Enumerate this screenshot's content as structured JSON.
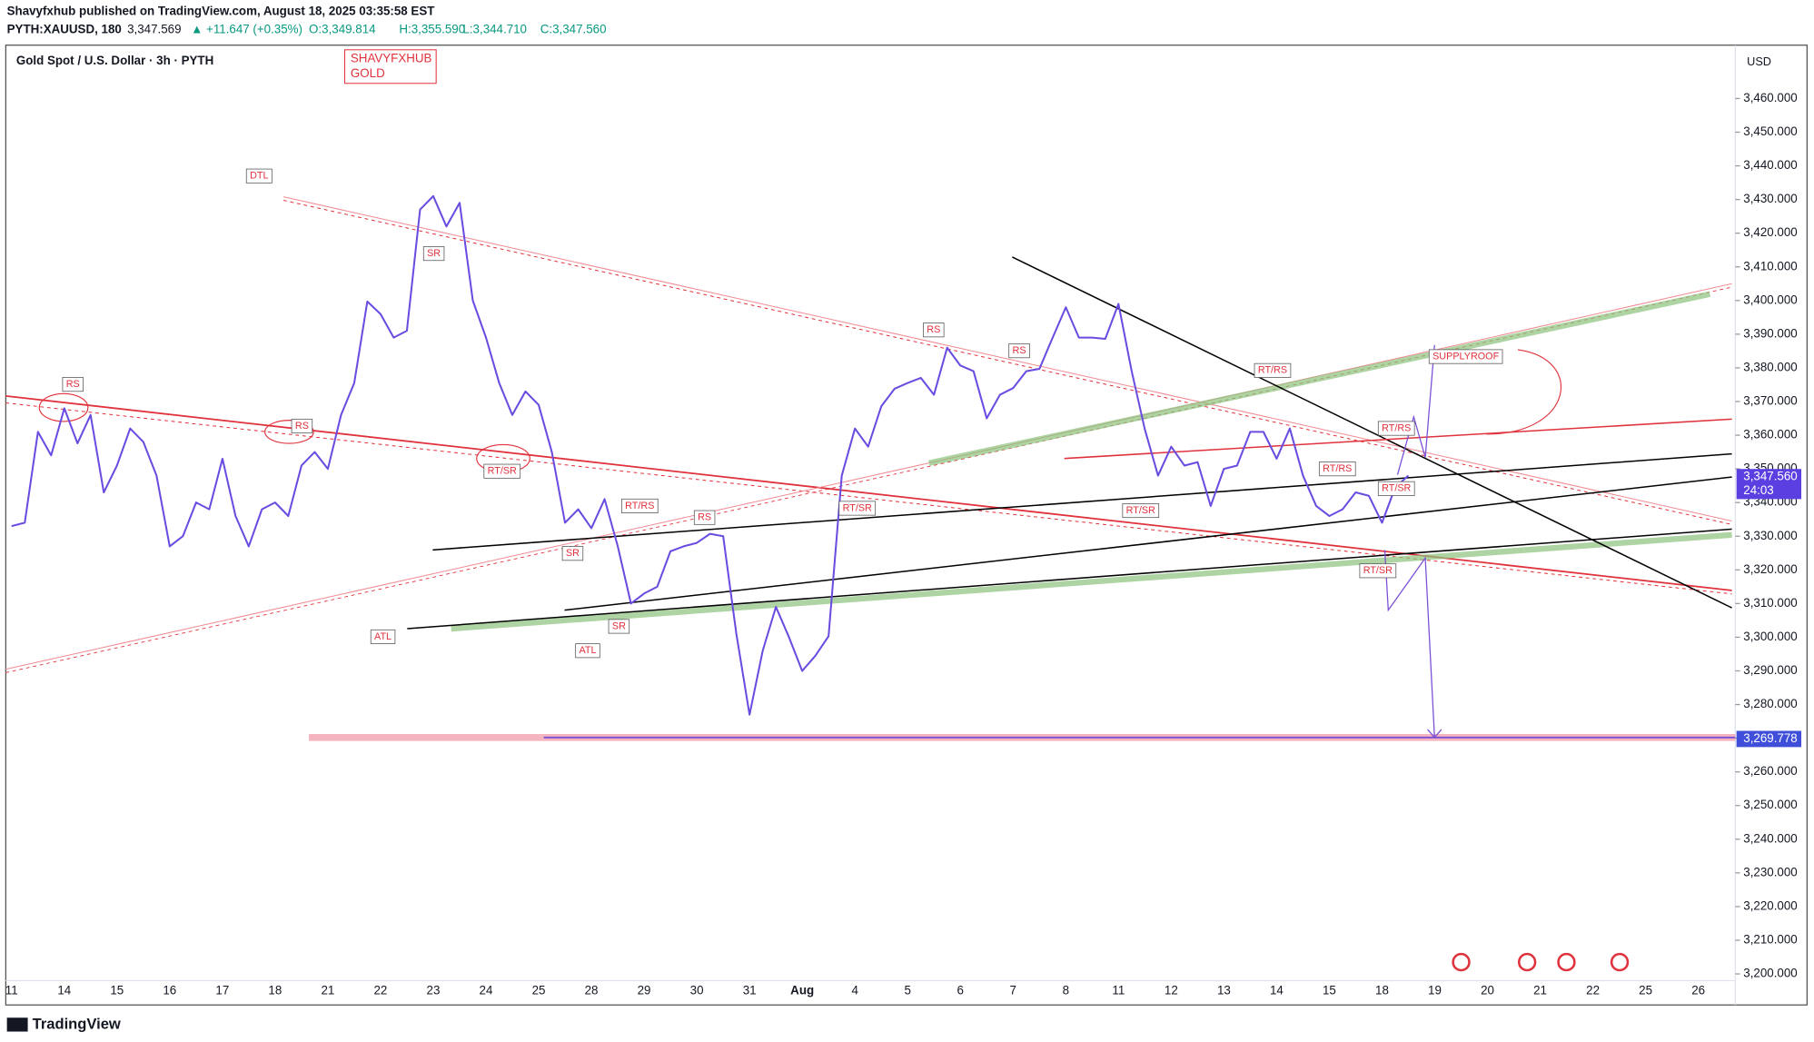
{
  "chart_data": {
    "type": "line",
    "publisher_line": "Shavyfxhub published on TradingView.com, August 18, 2025 03:35:58 EST",
    "symbol": "PYTH:XAUUSD, 180",
    "last": "3,347.569",
    "change": "▲ +11.647 (+0.35%)",
    "ohlc": [
      "O:3,349.814",
      "H:3,355.590",
      "L:3,344.710",
      "C:3,347.560"
    ],
    "title": "Gold Spot / U.S. Dollar · 3h · PYTH",
    "watermark": [
      "SHAVYFXHUB",
      "GOLD"
    ],
    "currency": "USD",
    "logo": "TradingView",
    "countdown": "24:03",
    "price_labels": [
      {
        "value": 3347.56,
        "label": "3,347.560",
        "color": "#5b3fe0"
      },
      {
        "value": 3269.778,
        "label": "3,269.778",
        "color": "#3f4fd9"
      }
    ],
    "annotations": [
      "DTL",
      "SR",
      "RS",
      "RS",
      "RT/SR",
      "RT/RS",
      "RS",
      "SR",
      "SR",
      "ATL",
      "ATL",
      "RT/SR",
      "RS",
      "RS",
      "RT/RS",
      "RT/SR",
      "RT/RS",
      "RT/RS",
      "RT/SR",
      "RT/SR",
      "SUPPLYROOF"
    ],
    "categories": [
      "11",
      null,
      null,
      null,
      "14",
      null,
      null,
      null,
      "15",
      null,
      null,
      null,
      "16",
      null,
      null,
      null,
      "17",
      null,
      null,
      null,
      "18",
      null,
      null,
      null,
      "21",
      null,
      null,
      null,
      "22",
      null,
      null,
      null,
      "23",
      null,
      null,
      null,
      "24",
      null,
      null,
      null,
      "25",
      null,
      null,
      null,
      "28",
      null,
      null,
      null,
      "29",
      null,
      null,
      null,
      "30",
      null,
      null,
      null,
      "31",
      null,
      null,
      null,
      "Aug",
      null,
      null,
      null,
      "4",
      null,
      null,
      null,
      "5",
      null,
      null,
      null,
      "6",
      null,
      null,
      null,
      "7",
      null,
      null,
      null,
      "8",
      null,
      null,
      null,
      "11",
      null,
      null,
      null,
      "12",
      null,
      null,
      null,
      "13",
      null,
      null,
      null,
      "14",
      null,
      null,
      null,
      "15",
      null,
      null,
      null,
      "18",
      null,
      null,
      null,
      "19",
      null,
      null,
      null,
      "20",
      null,
      null,
      null,
      "21",
      null,
      null,
      null,
      "22",
      null,
      null,
      null,
      "25",
      null,
      null,
      null,
      "26"
    ],
    "series": [
      {
        "name": "XAUUSD",
        "color": "#6a4ce0",
        "values": [
          3333,
          3334,
          3361,
          3354,
          3368,
          3357.6,
          3366,
          3343,
          3351,
          3362,
          3358,
          3348,
          3327,
          3330,
          3340,
          3338,
          3353,
          3336,
          3327,
          3338,
          3340,
          3336,
          3351,
          3355,
          3350,
          3366,
          3375.5,
          3399.7,
          3396,
          3389,
          3391,
          3427,
          3431,
          3422,
          3429,
          3400,
          3389,
          3375.5,
          3366,
          3373,
          3369,
          3355,
          3334,
          3338,
          3332.4,
          3341,
          3327,
          3310,
          3313,
          3315,
          3325.5,
          3327,
          3328,
          3330.7,
          3330,
          3301,
          3277,
          3296,
          3309,
          3300,
          3290,
          3294.5,
          3300.3,
          3348,
          3362,
          3356.6,
          3368.6,
          3373.8,
          3375.5,
          3377,
          3372,
          3386,
          3380.7,
          3379,
          3365,
          3372,
          3374,
          3379,
          3379.7,
          3389,
          3398,
          3389,
          3389,
          3388.6,
          3399,
          3379,
          3361.7,
          3348,
          3356.6,
          3351,
          3352,
          3339,
          3350,
          3351,
          3361,
          3361,
          3353,
          3362,
          3348,
          3339,
          3336,
          3338,
          3343,
          3342,
          3334,
          3344.5,
          3348,
          null,
          null,
          null,
          null,
          null,
          null,
          null,
          null,
          null,
          null,
          null,
          null,
          null,
          null,
          null,
          null,
          null,
          null,
          null,
          null,
          null,
          null
        ]
      }
    ],
    "ylim": [
      3198,
      3475.5
    ],
    "yticks": [
      {
        "value": 3200,
        "label": "3,200.000"
      },
      {
        "value": 3210,
        "label": "3,210.000"
      },
      {
        "value": 3220,
        "label": "3,220.000"
      },
      {
        "value": 3230,
        "label": "3,230.000"
      },
      {
        "value": 3240,
        "label": "3,240.000"
      },
      {
        "value": 3250,
        "label": "3,250.000"
      },
      {
        "value": 3260,
        "label": "3,260.000"
      },
      {
        "value": 3270,
        "label": "3,270.000"
      },
      {
        "value": 3280,
        "label": "3,280.000"
      },
      {
        "value": 3290,
        "label": "3,290.000"
      },
      {
        "value": 3300,
        "label": "3,300.000"
      },
      {
        "value": 3310,
        "label": "3,310.000"
      },
      {
        "value": 3320,
        "label": "3,320.000"
      },
      {
        "value": 3330,
        "label": "3,330.000"
      },
      {
        "value": 3340,
        "label": "3,340.000"
      },
      {
        "value": 3350,
        "label": "3,350.000"
      },
      {
        "value": 3360,
        "label": "3,360.000"
      },
      {
        "value": 3370,
        "label": "3,370.000"
      },
      {
        "value": 3380,
        "label": "3,380.000"
      },
      {
        "value": 3390,
        "label": "3,390.000"
      },
      {
        "value": 3400,
        "label": "3,400.000"
      },
      {
        "value": 3410,
        "label": "3,410.000"
      },
      {
        "value": 3420,
        "label": "3,420.000"
      },
      {
        "value": 3430,
        "label": "3,430.000"
      },
      {
        "value": 3440,
        "label": "3,440.000"
      },
      {
        "value": 3450,
        "label": "3,450.000"
      },
      {
        "value": 3460,
        "label": "3,460.000"
      }
    ],
    "grid": false
  }
}
